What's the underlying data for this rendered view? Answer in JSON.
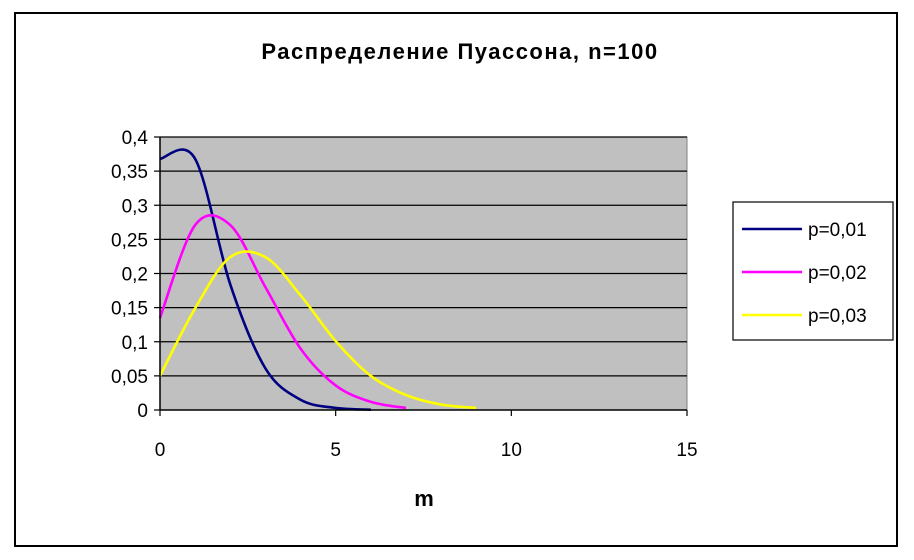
{
  "chart_data": {
    "type": "line",
    "title": "Распределение Пуассона, n=100",
    "xlabel": "m",
    "ylabel": "",
    "xlim": [
      0,
      15
    ],
    "ylim": [
      0,
      0.4
    ],
    "x_ticks": [
      {
        "value": 0,
        "label": "0"
      },
      {
        "value": 5,
        "label": "5"
      },
      {
        "value": 10,
        "label": "10"
      },
      {
        "value": 15,
        "label": "15"
      }
    ],
    "y_ticks": [
      {
        "value": 0,
        "label": "0"
      },
      {
        "value": 0.05,
        "label": "0,05"
      },
      {
        "value": 0.1,
        "label": "0,1"
      },
      {
        "value": 0.15,
        "label": "0,15"
      },
      {
        "value": 0.2,
        "label": "0,2"
      },
      {
        "value": 0.25,
        "label": "0,25"
      },
      {
        "value": 0.3,
        "label": "0,3"
      },
      {
        "value": 0.35,
        "label": "0,35"
      },
      {
        "value": 0.4,
        "label": "0,4"
      }
    ],
    "grid": "horizontal",
    "plot_background": "#c0c0c0",
    "legend_position": "right",
    "series": [
      {
        "name": "p=0,01",
        "color": "#000080",
        "x": [
          0,
          1,
          2,
          3,
          4,
          5,
          6
        ],
        "values": [
          0.368,
          0.368,
          0.184,
          0.061,
          0.015,
          0.003,
          0.0005
        ]
      },
      {
        "name": "p=0,02",
        "color": "#ff00ff",
        "x": [
          0,
          1,
          2,
          3,
          4,
          5,
          6,
          7
        ],
        "values": [
          0.135,
          0.271,
          0.271,
          0.18,
          0.09,
          0.036,
          0.012,
          0.003
        ]
      },
      {
        "name": "p=0,03",
        "color": "#ffff00",
        "x": [
          0,
          1,
          2,
          3,
          4,
          5,
          6,
          7,
          8,
          9
        ],
        "values": [
          0.05,
          0.149,
          0.224,
          0.224,
          0.168,
          0.101,
          0.05,
          0.022,
          0.008,
          0.003
        ]
      }
    ]
  }
}
